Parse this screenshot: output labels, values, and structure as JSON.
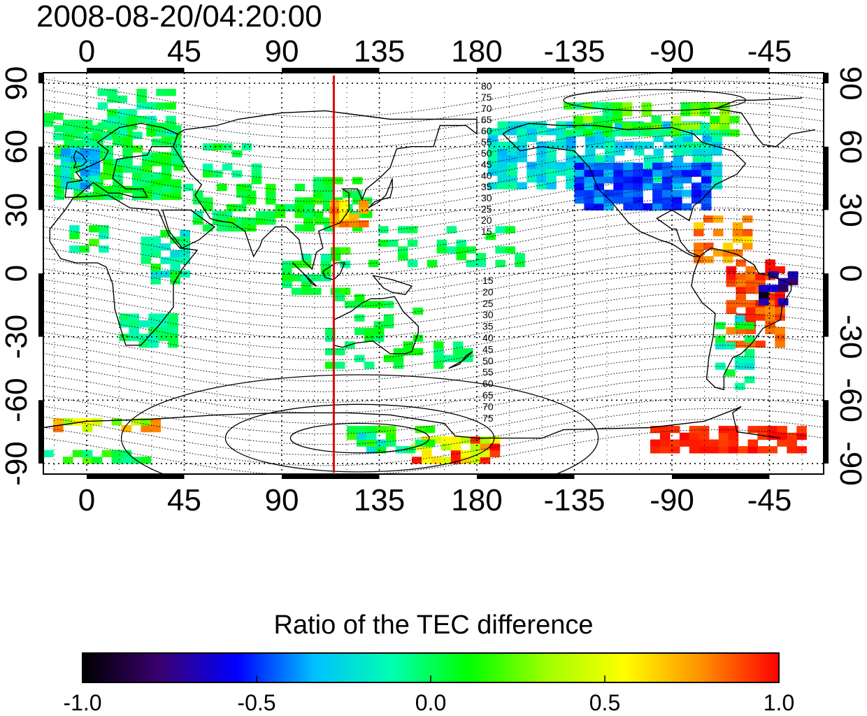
{
  "title": "2008-08-20/04:20:00",
  "map": {
    "lon_center": 0,
    "lon_range": [
      -20,
      340
    ],
    "lat_range": [
      -95,
      95
    ],
    "x_ticks": [
      0,
      45,
      90,
      135,
      180,
      -135,
      -90,
      -45
    ],
    "y_ticks": [
      90,
      60,
      30,
      0,
      -30,
      -60,
      -90
    ],
    "grid": "dotted",
    "terminator_lon": 114,
    "terminator_color": "#e00000",
    "contour_labels_north": [
      "80",
      "75",
      "70",
      "65",
      "60",
      "55",
      "50",
      "45",
      "40",
      "35",
      "30",
      "25",
      "20",
      "15"
    ],
    "contour_labels_south": [
      "15",
      "20",
      "25",
      "30",
      "35",
      "40",
      "45",
      "50",
      "55",
      "60",
      "65",
      "70",
      "75"
    ]
  },
  "colorbar": {
    "title": "Ratio of the TEC difference",
    "min": -1.0,
    "max": 1.0,
    "tick_labels": [
      "-1.0",
      "-0.5",
      "0.0",
      "0.5",
      "1.0"
    ],
    "tick_values": [
      -1.0,
      -0.5,
      0.0,
      0.5,
      1.0
    ],
    "colormap": [
      "#000000",
      "#3a0070",
      "#0000ff",
      "#00c0ff",
      "#00ffb0",
      "#00ff00",
      "#a0ff00",
      "#ffff00",
      "#ff9000",
      "#ff0000"
    ]
  }
}
